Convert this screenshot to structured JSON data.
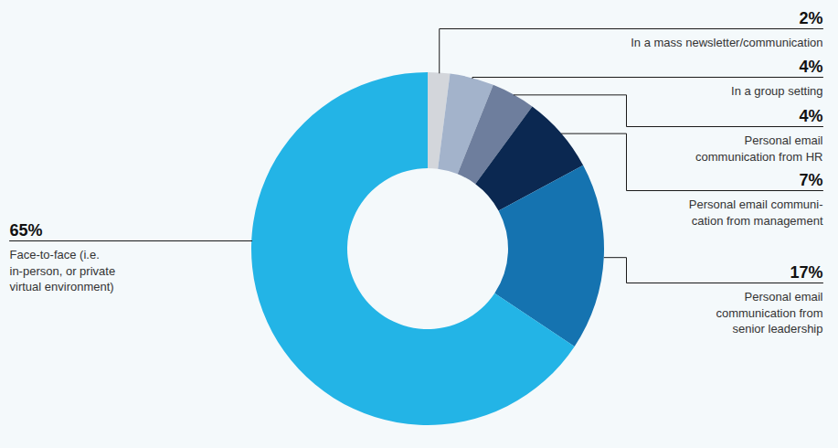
{
  "chart_data": {
    "type": "pie",
    "categories": [
      "In a mass newsletter/communication",
      "In a group setting",
      "Personal email\ncommunication from HR",
      "Personal email communi-\ncation from management",
      "Personal email\ncommunication from\nsenior leadership",
      "Face-to-face (i.e.\nin-person, or private\nvirtual environment)"
    ],
    "values": [
      2,
      4,
      4,
      7,
      17,
      65
    ],
    "value_labels": [
      "2%",
      "4%",
      "4%",
      "7%",
      "17%",
      "65%"
    ],
    "colors": [
      "#d3d6db",
      "#a3b3cb",
      "#6e7e9d",
      "#0b2851",
      "#1573b0",
      "#23b4e6"
    ],
    "data_labels": true
  }
}
